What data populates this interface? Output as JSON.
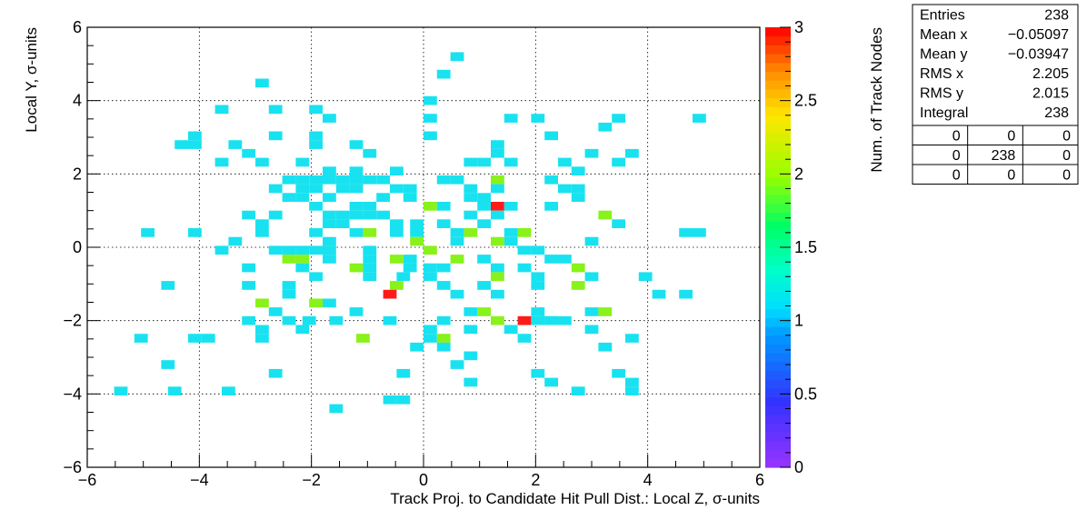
{
  "chart_data": {
    "type": "heatmap",
    "xlabel": "Track Proj. to Candidate Hit Pull Dist.: Local Z, σ-units",
    "ylabel": "Local Y, σ-units",
    "zlabel": "Num. of Track Nodes",
    "xlim": [
      -6,
      6
    ],
    "ylim": [
      -6,
      6
    ],
    "zlim": [
      0,
      3
    ],
    "bin_width": 0.24,
    "grid": true,
    "x_ticks": [
      -6,
      -4,
      -2,
      0,
      2,
      4,
      6
    ],
    "x_tick_labels": [
      "−6",
      "−4",
      "−2",
      "0",
      "2",
      "4",
      "6"
    ],
    "y_ticks": [
      -6,
      -4,
      -2,
      0,
      2,
      4,
      6
    ],
    "y_tick_labels": [
      "−6",
      "−4",
      "−2",
      "0",
      "2",
      "4",
      "6"
    ],
    "z_ticks": [
      0,
      0.5,
      1,
      1.5,
      2,
      2.5,
      3
    ],
    "z_tick_labels": [
      "0",
      "0.5",
      "1",
      "1.5",
      "2",
      "2.5",
      "3"
    ],
    "bins": [
      [
        0.6,
        5.2,
        1
      ],
      [
        0.36,
        4.72,
        1
      ],
      [
        -2.88,
        4.48,
        1
      ],
      [
        0.12,
        4.0,
        1
      ],
      [
        -3.6,
        3.76,
        1
      ],
      [
        -2.64,
        3.76,
        1
      ],
      [
        -1.92,
        3.76,
        1
      ],
      [
        -1.68,
        3.52,
        1
      ],
      [
        0.12,
        3.52,
        1
      ],
      [
        1.56,
        3.52,
        1
      ],
      [
        2.04,
        3.52,
        1
      ],
      [
        3.48,
        3.52,
        1
      ],
      [
        4.92,
        3.52,
        1
      ],
      [
        3.24,
        3.28,
        1
      ],
      [
        -4.08,
        3.04,
        1
      ],
      [
        -2.64,
        3.04,
        1
      ],
      [
        -1.92,
        3.04,
        1
      ],
      [
        0.12,
        3.04,
        1
      ],
      [
        2.28,
        3.04,
        1
      ],
      [
        -4.32,
        2.8,
        1
      ],
      [
        -4.08,
        2.8,
        1
      ],
      [
        -3.36,
        2.8,
        1
      ],
      [
        -1.92,
        2.8,
        1
      ],
      [
        -1.2,
        2.8,
        1
      ],
      [
        1.32,
        2.8,
        1
      ],
      [
        -3.12,
        2.56,
        1
      ],
      [
        -0.96,
        2.56,
        1
      ],
      [
        1.32,
        2.56,
        1
      ],
      [
        3.0,
        2.56,
        1
      ],
      [
        3.72,
        2.56,
        1
      ],
      [
        -3.6,
        2.32,
        1
      ],
      [
        -2.88,
        2.32,
        1
      ],
      [
        -2.16,
        2.32,
        1
      ],
      [
        0.84,
        2.32,
        1
      ],
      [
        1.08,
        2.32,
        1
      ],
      [
        1.56,
        2.32,
        1
      ],
      [
        2.52,
        2.32,
        1
      ],
      [
        3.48,
        2.32,
        1
      ],
      [
        -1.68,
        2.08,
        1
      ],
      [
        -1.2,
        2.08,
        1
      ],
      [
        -0.48,
        2.08,
        1
      ],
      [
        2.76,
        2.08,
        1
      ],
      [
        -2.4,
        1.84,
        1
      ],
      [
        -2.16,
        1.84,
        1
      ],
      [
        -1.92,
        1.84,
        1
      ],
      [
        -1.68,
        1.84,
        1
      ],
      [
        -1.44,
        1.84,
        1
      ],
      [
        -1.2,
        1.84,
        1
      ],
      [
        -0.96,
        1.84,
        1
      ],
      [
        -0.72,
        1.84,
        1
      ],
      [
        0.36,
        1.84,
        1
      ],
      [
        0.6,
        1.84,
        1
      ],
      [
        1.32,
        1.84,
        2
      ],
      [
        2.28,
        1.84,
        1
      ],
      [
        -2.64,
        1.6,
        1
      ],
      [
        -2.16,
        1.6,
        1
      ],
      [
        -1.92,
        1.6,
        1
      ],
      [
        -1.44,
        1.6,
        1
      ],
      [
        -1.2,
        1.6,
        1
      ],
      [
        -0.48,
        1.6,
        1
      ],
      [
        -0.24,
        1.6,
        1
      ],
      [
        0.84,
        1.6,
        1
      ],
      [
        1.32,
        1.6,
        1
      ],
      [
        2.52,
        1.6,
        1
      ],
      [
        2.76,
        1.6,
        1
      ],
      [
        -2.4,
        1.36,
        1
      ],
      [
        -2.16,
        1.36,
        1
      ],
      [
        -1.68,
        1.36,
        1
      ],
      [
        -0.72,
        1.36,
        1
      ],
      [
        -0.24,
        1.36,
        1
      ],
      [
        0.84,
        1.36,
        1
      ],
      [
        1.08,
        1.36,
        1
      ],
      [
        2.76,
        1.36,
        1
      ],
      [
        -1.92,
        1.12,
        1
      ],
      [
        -1.2,
        1.12,
        1
      ],
      [
        -0.96,
        1.12,
        1
      ],
      [
        0.12,
        1.12,
        2
      ],
      [
        0.36,
        1.12,
        1
      ],
      [
        1.08,
        1.12,
        1
      ],
      [
        1.32,
        1.12,
        3
      ],
      [
        1.56,
        1.12,
        1
      ],
      [
        2.28,
        1.12,
        1
      ],
      [
        -3.12,
        0.88,
        1
      ],
      [
        -2.64,
        0.88,
        1
      ],
      [
        -1.2,
        0.88,
        1
      ],
      [
        -1.44,
        0.88,
        1
      ],
      [
        -0.96,
        0.88,
        1
      ],
      [
        -1.68,
        0.88,
        1
      ],
      [
        -0.72,
        0.88,
        1
      ],
      [
        0.84,
        0.88,
        1
      ],
      [
        1.32,
        0.88,
        1
      ],
      [
        3.24,
        0.88,
        2
      ],
      [
        -2.88,
        0.64,
        1
      ],
      [
        -1.44,
        0.64,
        1
      ],
      [
        -1.68,
        0.64,
        1
      ],
      [
        -0.48,
        0.64,
        1
      ],
      [
        -0.12,
        0.64,
        1
      ],
      [
        0.36,
        0.64,
        1
      ],
      [
        1.08,
        0.64,
        1
      ],
      [
        3.48,
        0.64,
        1
      ],
      [
        -4.92,
        0.4,
        1
      ],
      [
        -4.08,
        0.4,
        1
      ],
      [
        -2.88,
        0.4,
        1
      ],
      [
        -1.92,
        0.4,
        1
      ],
      [
        -1.2,
        0.4,
        1
      ],
      [
        -0.96,
        0.4,
        2
      ],
      [
        -0.48,
        0.4,
        1
      ],
      [
        -0.12,
        0.4,
        1
      ],
      [
        0.6,
        0.4,
        1
      ],
      [
        0.84,
        0.4,
        2
      ],
      [
        1.8,
        0.4,
        2
      ],
      [
        1.56,
        0.4,
        1
      ],
      [
        4.68,
        0.4,
        1
      ],
      [
        4.92,
        0.4,
        1
      ],
      [
        -3.36,
        0.16,
        1
      ],
      [
        -1.68,
        0.16,
        1
      ],
      [
        -0.12,
        0.16,
        2
      ],
      [
        0.6,
        0.16,
        1
      ],
      [
        1.32,
        0.16,
        2
      ],
      [
        1.56,
        0.16,
        1
      ],
      [
        3.0,
        0.16,
        1
      ],
      [
        -3.6,
        -0.08,
        1
      ],
      [
        -2.64,
        -0.08,
        1
      ],
      [
        -2.16,
        -0.08,
        1
      ],
      [
        -2.4,
        -0.08,
        1
      ],
      [
        -1.92,
        -0.08,
        1
      ],
      [
        -1.68,
        -0.08,
        1
      ],
      [
        -0.96,
        -0.08,
        1
      ],
      [
        0.12,
        -0.08,
        2
      ],
      [
        1.8,
        -0.08,
        1
      ],
      [
        2.04,
        -0.08,
        1
      ],
      [
        -2.4,
        -0.32,
        2
      ],
      [
        -2.16,
        -0.32,
        2
      ],
      [
        -1.68,
        -0.32,
        1
      ],
      [
        -0.96,
        -0.32,
        1
      ],
      [
        -0.48,
        -0.32,
        2
      ],
      [
        -0.24,
        -0.32,
        1
      ],
      [
        0.6,
        -0.32,
        2
      ],
      [
        1.08,
        -0.32,
        1
      ],
      [
        2.28,
        -0.32,
        1
      ],
      [
        2.52,
        -0.32,
        1
      ],
      [
        -3.12,
        -0.56,
        1
      ],
      [
        -2.16,
        -0.56,
        1
      ],
      [
        -1.2,
        -0.56,
        2
      ],
      [
        -0.96,
        -0.56,
        1
      ],
      [
        -0.24,
        -0.56,
        1
      ],
      [
        0.12,
        -0.56,
        1
      ],
      [
        0.36,
        -0.56,
        1
      ],
      [
        1.32,
        -0.56,
        1
      ],
      [
        1.8,
        -0.56,
        1
      ],
      [
        2.76,
        -0.56,
        2
      ],
      [
        -1.92,
        -0.8,
        1
      ],
      [
        -0.96,
        -0.8,
        1
      ],
      [
        0.12,
        -0.8,
        1
      ],
      [
        -0.36,
        -0.8,
        1
      ],
      [
        1.32,
        -0.8,
        2
      ],
      [
        2.04,
        -0.8,
        1
      ],
      [
        3.0,
        -0.8,
        1
      ],
      [
        3.96,
        -0.8,
        1
      ],
      [
        -4.56,
        -1.04,
        1
      ],
      [
        -3.12,
        -1.04,
        1
      ],
      [
        -2.4,
        -1.04,
        1
      ],
      [
        -0.48,
        -1.04,
        2
      ],
      [
        0.36,
        -1.04,
        1
      ],
      [
        1.08,
        -1.04,
        1
      ],
      [
        2.04,
        -1.04,
        1
      ],
      [
        2.76,
        -1.04,
        2
      ],
      [
        -2.4,
        -1.28,
        1
      ],
      [
        -0.6,
        -1.28,
        3
      ],
      [
        0.6,
        -1.28,
        1
      ],
      [
        1.32,
        -1.28,
        1
      ],
      [
        4.2,
        -1.28,
        1
      ],
      [
        4.68,
        -1.28,
        1
      ],
      [
        -2.88,
        -1.52,
        2
      ],
      [
        -1.92,
        -1.52,
        2
      ],
      [
        -1.68,
        -1.52,
        1
      ],
      [
        -2.64,
        -1.76,
        1
      ],
      [
        -1.2,
        -1.76,
        1
      ],
      [
        0.84,
        -1.76,
        1
      ],
      [
        1.08,
        -1.76,
        2
      ],
      [
        2.04,
        -1.76,
        1
      ],
      [
        3.0,
        -1.76,
        1
      ],
      [
        3.24,
        -1.76,
        2
      ],
      [
        -3.12,
        -2.0,
        1
      ],
      [
        -2.4,
        -2.0,
        1
      ],
      [
        -2.04,
        -2.0,
        1
      ],
      [
        -1.56,
        -2.0,
        1
      ],
      [
        -0.6,
        -2.0,
        1
      ],
      [
        0.36,
        -2.0,
        1
      ],
      [
        1.32,
        -2.0,
        2
      ],
      [
        1.8,
        -2.0,
        3
      ],
      [
        2.04,
        -2.0,
        1
      ],
      [
        2.28,
        -2.0,
        1
      ],
      [
        2.52,
        -2.0,
        1
      ],
      [
        2.28,
        -2.0,
        1
      ],
      [
        -2.88,
        -2.24,
        1
      ],
      [
        -2.16,
        -2.24,
        1
      ],
      [
        0.12,
        -2.24,
        1
      ],
      [
        0.84,
        -2.24,
        1
      ],
      [
        1.56,
        -2.24,
        1
      ],
      [
        3.0,
        -2.24,
        1
      ],
      [
        -5.04,
        -2.48,
        1
      ],
      [
        -4.08,
        -2.48,
        1
      ],
      [
        -3.84,
        -2.48,
        1
      ],
      [
        -2.88,
        -2.48,
        1
      ],
      [
        -1.08,
        -2.48,
        2
      ],
      [
        0.12,
        -2.48,
        1
      ],
      [
        0.36,
        -2.48,
        2
      ],
      [
        1.8,
        -2.48,
        1
      ],
      [
        3.72,
        -2.48,
        1
      ],
      [
        -0.12,
        -2.72,
        1
      ],
      [
        0.36,
        -2.72,
        1
      ],
      [
        3.24,
        -2.72,
        1
      ],
      [
        0.84,
        -2.96,
        1
      ],
      [
        -4.56,
        -3.2,
        1
      ],
      [
        0.6,
        -3.2,
        1
      ],
      [
        -2.64,
        -3.44,
        1
      ],
      [
        -0.36,
        -3.44,
        1
      ],
      [
        2.04,
        -3.44,
        1
      ],
      [
        3.48,
        -3.44,
        1
      ],
      [
        0.84,
        -3.68,
        1
      ],
      [
        2.28,
        -3.68,
        1
      ],
      [
        3.72,
        -3.68,
        1
      ],
      [
        -5.4,
        -3.92,
        1
      ],
      [
        -4.44,
        -3.92,
        1
      ],
      [
        -3.48,
        -3.92,
        1
      ],
      [
        2.76,
        -3.92,
        1
      ],
      [
        3.72,
        -3.92,
        1
      ],
      [
        -0.6,
        -4.16,
        1
      ],
      [
        -0.36,
        -4.16,
        1
      ],
      [
        -1.56,
        -4.4,
        1
      ]
    ]
  },
  "stats": {
    "rows": [
      {
        "label": "Entries",
        "value": "238"
      },
      {
        "label": "Mean x",
        "value": "−0.05097"
      },
      {
        "label": "Mean y",
        "value": "−0.03947"
      },
      {
        "label": "RMS x",
        "value": "2.205"
      },
      {
        "label": "RMS y",
        "value": "2.015"
      },
      {
        "label": "Integral",
        "value": "238"
      }
    ],
    "grid": [
      [
        "0",
        "0",
        "0"
      ],
      [
        "0",
        "238",
        "0"
      ],
      [
        "0",
        "0",
        "0"
      ]
    ]
  }
}
